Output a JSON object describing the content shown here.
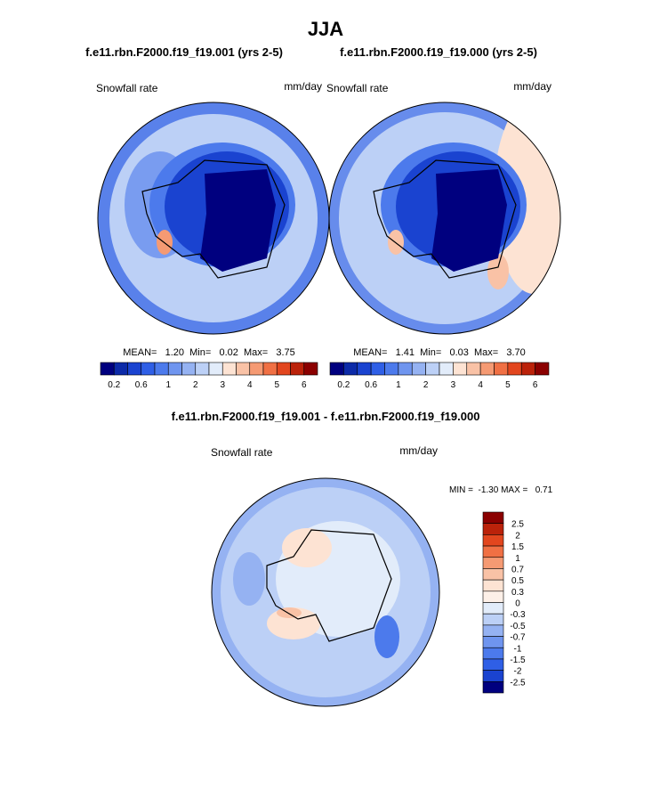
{
  "title": "JJA",
  "panels": [
    {
      "case": "f.e11.rbn.F2000.f19_f19.001 (yrs 2-5)",
      "variable": "Snowfall rate",
      "units": "mm/day",
      "stats": "MEAN=   1.20  Min=   0.02  Max=   3.75"
    },
    {
      "case": "f.e11.rbn.F2000.f19_f19.000 (yrs 2-5)",
      "variable": "Snowfall rate",
      "units": "mm/day",
      "stats": "MEAN=   1.41  Min=   0.03  Max=   3.70"
    }
  ],
  "colorbar": {
    "labels": [
      "0.2",
      "0.6",
      "1",
      "2",
      "3",
      "4",
      "5",
      "6"
    ],
    "colors": [
      "#00007f",
      "#0c2aa8",
      "#1a43d0",
      "#2f5fe6",
      "#4c7aec",
      "#6f95ef",
      "#95b2f2",
      "#bcd0f6",
      "#e2ecfa",
      "#fde3d3",
      "#f9c2a6",
      "#f59a73",
      "#f07044",
      "#e2461e",
      "#bb220a",
      "#8b0000"
    ]
  },
  "difference": {
    "title": "f.e11.rbn.F2000.f19_f19.001 - f.e11.rbn.F2000.f19_f19.000",
    "variable": "Snowfall rate",
    "units": "mm/day",
    "stats": "MIN =  -1.30 MAX =   0.71",
    "colorbar": {
      "labels": [
        "2.5",
        "2",
        "1.5",
        "1",
        "0.7",
        "0.5",
        "0.3",
        "0",
        "-0.3",
        "-0.5",
        "-0.7",
        "-1",
        "-1.5",
        "-2",
        "-2.5"
      ],
      "colors": [
        "#8b0000",
        "#bb220a",
        "#e2461e",
        "#f07044",
        "#f59a73",
        "#f9c2a6",
        "#fde3d3",
        "#fdf0e8",
        "#e2ecfa",
        "#bcd0f6",
        "#95b2f2",
        "#6f95ef",
        "#4c7aec",
        "#2f5fe6",
        "#1a43d0",
        "#00007f"
      ]
    }
  }
}
